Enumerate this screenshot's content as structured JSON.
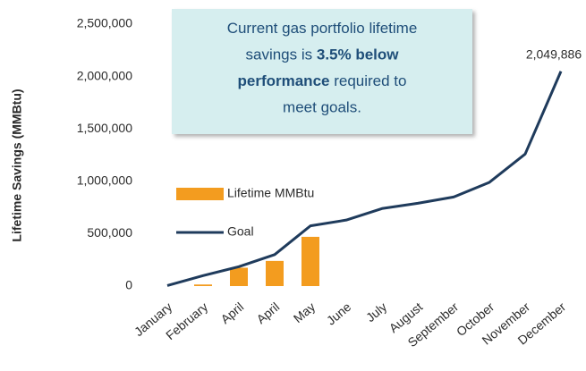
{
  "chart_data": {
    "type": "bar_line",
    "y_axis_label": "Lifetime Savings (MMBtu)",
    "categories": [
      "January",
      "February",
      "April",
      "April",
      "May",
      "June",
      "July",
      "August",
      "September",
      "October",
      "November",
      "December"
    ],
    "series": [
      {
        "name": "Lifetime MMBtu",
        "type": "bar",
        "color": "#f39c1f",
        "values": [
          0,
          15000,
          175000,
          240000,
          470000,
          null,
          null,
          null,
          null,
          null,
          null,
          null
        ]
      },
      {
        "name": "Goal",
        "type": "line",
        "color": "#1f3b5c",
        "values": [
          5000,
          100000,
          185000,
          300000,
          575000,
          630000,
          740000,
          790000,
          850000,
          990000,
          1260000,
          2049886
        ],
        "value_labels": [
          null,
          null,
          null,
          null,
          null,
          null,
          null,
          null,
          null,
          null,
          null,
          "2,049,886"
        ]
      }
    ],
    "ylim": [
      0,
      2500000
    ],
    "yticks": [
      0,
      {
        "value": 500000,
        "label": "500,000"
      },
      {
        "value": 1000000,
        "label": "1,000,000"
      },
      {
        "value": 1500000,
        "label": "1,500,000"
      },
      {
        "value": 2000000,
        "label": "2,000,000"
      },
      {
        "value": 2500000,
        "label": "2,500,000"
      }
    ],
    "grid": false,
    "legend": "inside-left",
    "annotation": [
      [
        {
          "text": "Current gas portfolio lifetime",
          "bold": false
        }
      ],
      [
        {
          "text": "savings is ",
          "bold": false
        },
        {
          "text": "3.5% below",
          "bold": true
        }
      ],
      [
        {
          "text": "performance",
          "bold": true
        },
        {
          "text": " required to",
          "bold": false
        }
      ],
      [
        {
          "text": "meet goals.",
          "bold": false
        }
      ]
    ]
  }
}
